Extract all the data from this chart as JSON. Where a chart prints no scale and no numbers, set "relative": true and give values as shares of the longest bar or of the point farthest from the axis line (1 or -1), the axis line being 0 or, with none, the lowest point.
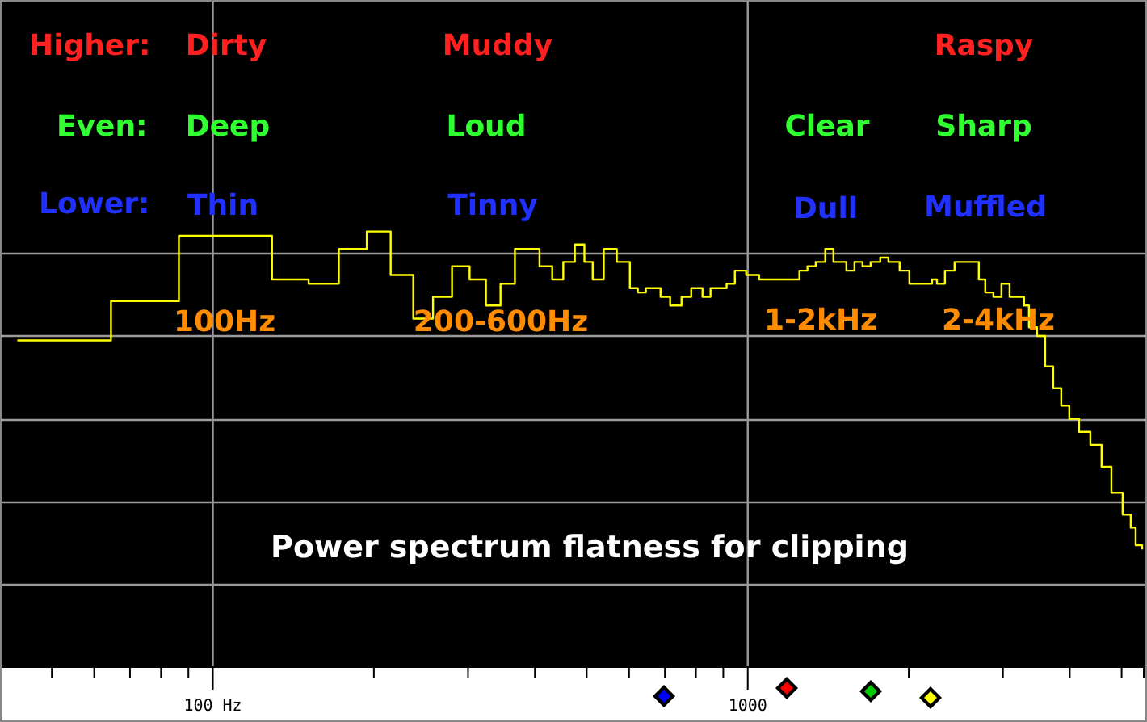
{
  "chart_data": {
    "type": "step",
    "relative": true,
    "title": "Power spectrum flatness for clipping",
    "annotations": [
      "Higher:",
      "Dirty",
      "Muddy",
      "Raspy",
      "Even:",
      "Deep",
      "Loud",
      "Clear",
      "Sharp",
      "Lower:",
      "Thin",
      "Tinny",
      "Dull",
      "Muffled",
      "100Hz",
      "200-600Hz",
      "1-2kHz",
      "2-4kHz"
    ],
    "xlim": [
      40,
      5500
    ],
    "log": "x",
    "grid": true,
    "xticks": [
      {
        "value": 50,
        "label": null
      },
      {
        "value": 60,
        "label": null
      },
      {
        "value": 70,
        "label": null
      },
      {
        "value": 80,
        "label": null
      },
      {
        "value": 90,
        "label": null
      },
      {
        "value": 100,
        "label": "100 Hz"
      },
      {
        "value": 200,
        "label": null
      },
      {
        "value": 300,
        "label": null
      },
      {
        "value": 400,
        "label": null
      },
      {
        "value": 500,
        "label": null
      },
      {
        "value": 600,
        "label": null
      },
      {
        "value": 700,
        "label": null
      },
      {
        "value": 800,
        "label": null
      },
      {
        "value": 900,
        "label": null
      },
      {
        "value": 1000,
        "label": "1000"
      },
      {
        "value": 2000,
        "label": null
      },
      {
        "value": 3000,
        "label": null
      },
      {
        "value": 4000,
        "label": null
      },
      {
        "value": 5000,
        "label": null
      }
    ],
    "series": [
      {
        "color": "#ffff00",
        "x": [
          43.1,
          64.5,
          86.4,
          108,
          129,
          151,
          172,
          194,
          215,
          237,
          258,
          280,
          302,
          324,
          345,
          367,
          388,
          408,
          431,
          452,
          475,
          495,
          513,
          538,
          569,
          602,
          623,
          645,
          687,
          716,
          752,
          784,
          823,
          852,
          913,
          946,
          993,
          1050,
          1126,
          1206,
          1249,
          1293,
          1340,
          1396,
          1446,
          1529,
          1583,
          1639,
          1697,
          1769,
          1832,
          1923,
          2005,
          2105,
          2211,
          2258,
          2337,
          2386,
          2436,
          2505,
          2558,
          2630,
          2704,
          2780,
          2879,
          2981,
          3087,
          3218,
          3285,
          3355,
          3474,
          3597,
          3724,
          3856,
          3992,
          4163,
          4371,
          4587,
          4785,
          5022,
          5200,
          5311,
          5461
        ],
        "values": [
          0.75,
          0.84,
          0.99,
          0.99,
          0.89,
          0.88,
          0.96,
          1.0,
          0.9,
          0.8,
          0.85,
          0.92,
          0.89,
          0.83,
          0.88,
          0.96,
          0.96,
          0.92,
          0.89,
          0.93,
          0.97,
          0.93,
          0.89,
          0.96,
          0.93,
          0.87,
          0.86,
          0.87,
          0.85,
          0.83,
          0.85,
          0.87,
          0.85,
          0.87,
          0.88,
          0.91,
          0.9,
          0.89,
          0.89,
          0.89,
          0.91,
          0.92,
          0.93,
          0.96,
          0.93,
          0.91,
          0.93,
          0.92,
          0.93,
          0.94,
          0.93,
          0.91,
          0.88,
          0.88,
          0.89,
          0.88,
          0.91,
          0.91,
          0.93,
          0.93,
          0.93,
          0.93,
          0.89,
          0.86,
          0.85,
          0.88,
          0.85,
          0.85,
          0.83,
          0.78,
          0.76,
          0.69,
          0.64,
          0.6,
          0.57,
          0.54,
          0.51,
          0.46,
          0.4,
          0.35,
          0.32,
          0.28,
          0.27
        ]
      }
    ]
  }
}
